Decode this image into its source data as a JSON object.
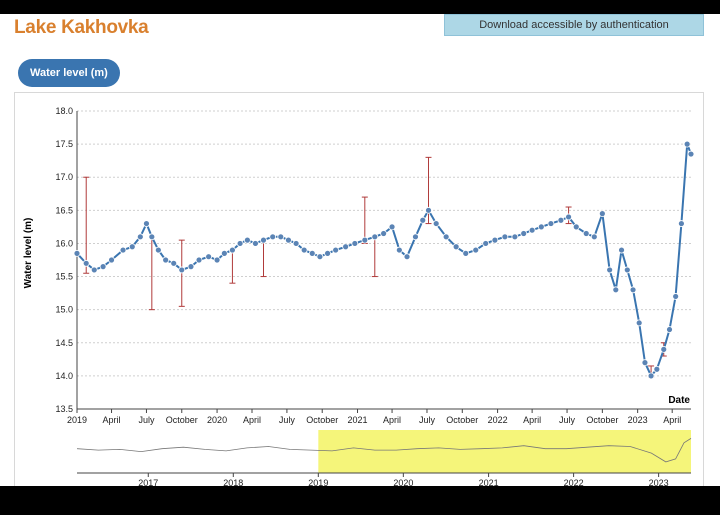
{
  "header": {
    "title": "Lake Kakhovka",
    "download_label": "Download accessible by authentication"
  },
  "tabs": [
    {
      "label": "Water level (m)",
      "active": true
    }
  ],
  "colors": {
    "title": "#d9802e",
    "series": "#3a75b0",
    "marker": "#5b84b5",
    "error_bar": "#b03a3a",
    "brush": "#f5f57a"
  },
  "chart_data": {
    "type": "line",
    "ylabel": "Water level (m)",
    "xlabel": "Date",
    "ylim": [
      13.5,
      18.0
    ],
    "xlim": [
      "2019-01-01",
      "2023-05-20"
    ],
    "yticks": [
      "13.5",
      "14.0",
      "14.5",
      "15.0",
      "15.5",
      "16.0",
      "16.5",
      "17.0",
      "17.5",
      "18.0"
    ],
    "xticks": [
      {
        "label": "2019",
        "date": "2019-01-01"
      },
      {
        "label": "April",
        "date": "2019-04-01"
      },
      {
        "label": "July",
        "date": "2019-07-01"
      },
      {
        "label": "October",
        "date": "2019-10-01"
      },
      {
        "label": "2020",
        "date": "2020-01-01"
      },
      {
        "label": "April",
        "date": "2020-04-01"
      },
      {
        "label": "July",
        "date": "2020-07-01"
      },
      {
        "label": "October",
        "date": "2020-10-01"
      },
      {
        "label": "2021",
        "date": "2021-01-01"
      },
      {
        "label": "April",
        "date": "2021-04-01"
      },
      {
        "label": "July",
        "date": "2021-07-01"
      },
      {
        "label": "October",
        "date": "2021-10-01"
      },
      {
        "label": "2022",
        "date": "2022-01-01"
      },
      {
        "label": "April",
        "date": "2022-04-01"
      },
      {
        "label": "July",
        "date": "2022-07-01"
      },
      {
        "label": "October",
        "date": "2022-10-01"
      },
      {
        "label": "2023",
        "date": "2023-01-01"
      },
      {
        "label": "April",
        "date": "2023-04-01"
      }
    ],
    "grid": true,
    "series": [
      {
        "x": [
          "2019-01-01",
          "2019-01-25",
          "2019-02-15",
          "2019-03-10",
          "2019-04-01",
          "2019-05-01",
          "2019-05-25",
          "2019-06-15",
          "2019-07-01",
          "2019-07-15",
          "2019-08-01",
          "2019-08-20",
          "2019-09-10",
          "2019-10-01",
          "2019-10-25",
          "2019-11-15",
          "2019-12-10",
          "2020-01-01",
          "2020-01-20",
          "2020-02-10",
          "2020-03-01",
          "2020-03-20",
          "2020-04-10",
          "2020-05-01",
          "2020-05-25",
          "2020-06-15",
          "2020-07-05",
          "2020-07-25",
          "2020-08-15",
          "2020-09-05",
          "2020-09-25",
          "2020-10-15",
          "2020-11-05",
          "2020-12-01",
          "2020-12-25",
          "2021-01-20",
          "2021-02-15",
          "2021-03-10",
          "2021-04-01",
          "2021-04-20",
          "2021-05-10",
          "2021-06-01",
          "2021-06-20",
          "2021-07-05",
          "2021-07-25",
          "2021-08-20",
          "2021-09-15",
          "2021-10-10",
          "2021-11-05",
          "2021-12-01",
          "2021-12-25",
          "2022-01-20",
          "2022-02-15",
          "2022-03-10",
          "2022-04-01",
          "2022-04-25",
          "2022-05-20",
          "2022-06-15",
          "2022-07-05",
          "2022-07-25",
          "2022-08-20",
          "2022-09-10",
          "2022-10-01",
          "2022-10-20",
          "2022-11-05",
          "2022-11-20",
          "2022-12-05",
          "2022-12-20",
          "2023-01-05",
          "2023-01-20",
          "2023-02-05",
          "2023-02-20",
          "2023-03-10",
          "2023-03-25",
          "2023-04-10",
          "2023-04-25",
          "2023-05-10",
          "2023-05-20"
        ],
        "y": [
          15.85,
          15.7,
          15.6,
          15.65,
          15.75,
          15.9,
          15.95,
          16.1,
          16.3,
          16.1,
          15.9,
          15.75,
          15.7,
          15.6,
          15.65,
          15.75,
          15.8,
          15.75,
          15.85,
          15.9,
          16.0,
          16.05,
          16.0,
          16.05,
          16.1,
          16.1,
          16.05,
          16.0,
          15.9,
          15.85,
          15.8,
          15.85,
          15.9,
          15.95,
          16.0,
          16.05,
          16.1,
          16.15,
          16.25,
          15.9,
          15.8,
          16.1,
          16.35,
          16.5,
          16.3,
          16.1,
          15.95,
          15.85,
          15.9,
          16.0,
          16.05,
          16.1,
          16.1,
          16.15,
          16.2,
          16.25,
          16.3,
          16.35,
          16.4,
          16.25,
          16.15,
          16.1,
          16.45,
          15.6,
          15.3,
          15.9,
          15.6,
          15.3,
          14.8,
          14.2,
          14.0,
          14.1,
          14.4,
          14.7,
          15.2,
          16.3,
          17.5,
          17.35
        ],
        "errors": [
          {
            "x": "2019-01-25",
            "low": 15.55,
            "high": 17.0
          },
          {
            "x": "2019-07-15",
            "low": 15.0,
            "high": 16.1
          },
          {
            "x": "2019-10-01",
            "low": 15.05,
            "high": 16.05
          },
          {
            "x": "2020-02-10",
            "low": 15.4,
            "high": 15.9
          },
          {
            "x": "2020-05-01",
            "low": 15.5,
            "high": 16.05
          },
          {
            "x": "2021-01-20",
            "low": 16.0,
            "high": 16.7
          },
          {
            "x": "2021-02-15",
            "low": 15.5,
            "high": 16.1
          },
          {
            "x": "2021-07-05",
            "low": 16.3,
            "high": 17.3
          },
          {
            "x": "2022-07-05",
            "low": 16.3,
            "high": 16.55
          },
          {
            "x": "2023-02-05",
            "low": 13.98,
            "high": 14.15
          },
          {
            "x": "2023-03-10",
            "low": 14.3,
            "high": 14.5
          }
        ]
      }
    ],
    "overview": {
      "xticks": [
        {
          "label": "2017",
          "date": "2017-01-01"
        },
        {
          "label": "2018",
          "date": "2018-01-01"
        },
        {
          "label": "2019",
          "date": "2019-01-01"
        },
        {
          "label": "2020",
          "date": "2020-01-01"
        },
        {
          "label": "2021",
          "date": "2021-01-01"
        },
        {
          "label": "2022",
          "date": "2022-01-01"
        },
        {
          "label": "2023",
          "date": "2023-01-01"
        }
      ],
      "xlim": [
        "2016-03-01",
        "2023-05-20"
      ],
      "brush": [
        "2019-01-01",
        "2023-05-20"
      ],
      "x": [
        "2016-03-01",
        "2016-06-01",
        "2016-09-01",
        "2016-12-01",
        "2017-03-01",
        "2017-06-01",
        "2017-09-01",
        "2017-12-01",
        "2018-03-01",
        "2018-06-01",
        "2018-09-01",
        "2018-12-01",
        "2019-03-01",
        "2019-06-01",
        "2019-09-01",
        "2019-12-01",
        "2020-03-01",
        "2020-06-01",
        "2020-09-01",
        "2020-12-01",
        "2021-03-01",
        "2021-06-01",
        "2021-09-01",
        "2021-12-01",
        "2022-03-01",
        "2022-06-01",
        "2022-09-01",
        "2022-12-01",
        "2023-02-01",
        "2023-03-15",
        "2023-04-20",
        "2023-05-20"
      ],
      "y": [
        16.0,
        15.8,
        15.9,
        15.6,
        16.0,
        16.2,
        15.9,
        15.7,
        16.1,
        16.3,
        15.9,
        15.8,
        15.7,
        16.1,
        15.8,
        15.8,
        16.0,
        16.1,
        15.9,
        16.0,
        16.1,
        16.4,
        16.0,
        16.0,
        16.2,
        16.4,
        16.3,
        15.4,
        14.2,
        14.6,
        16.8,
        17.4
      ]
    }
  }
}
